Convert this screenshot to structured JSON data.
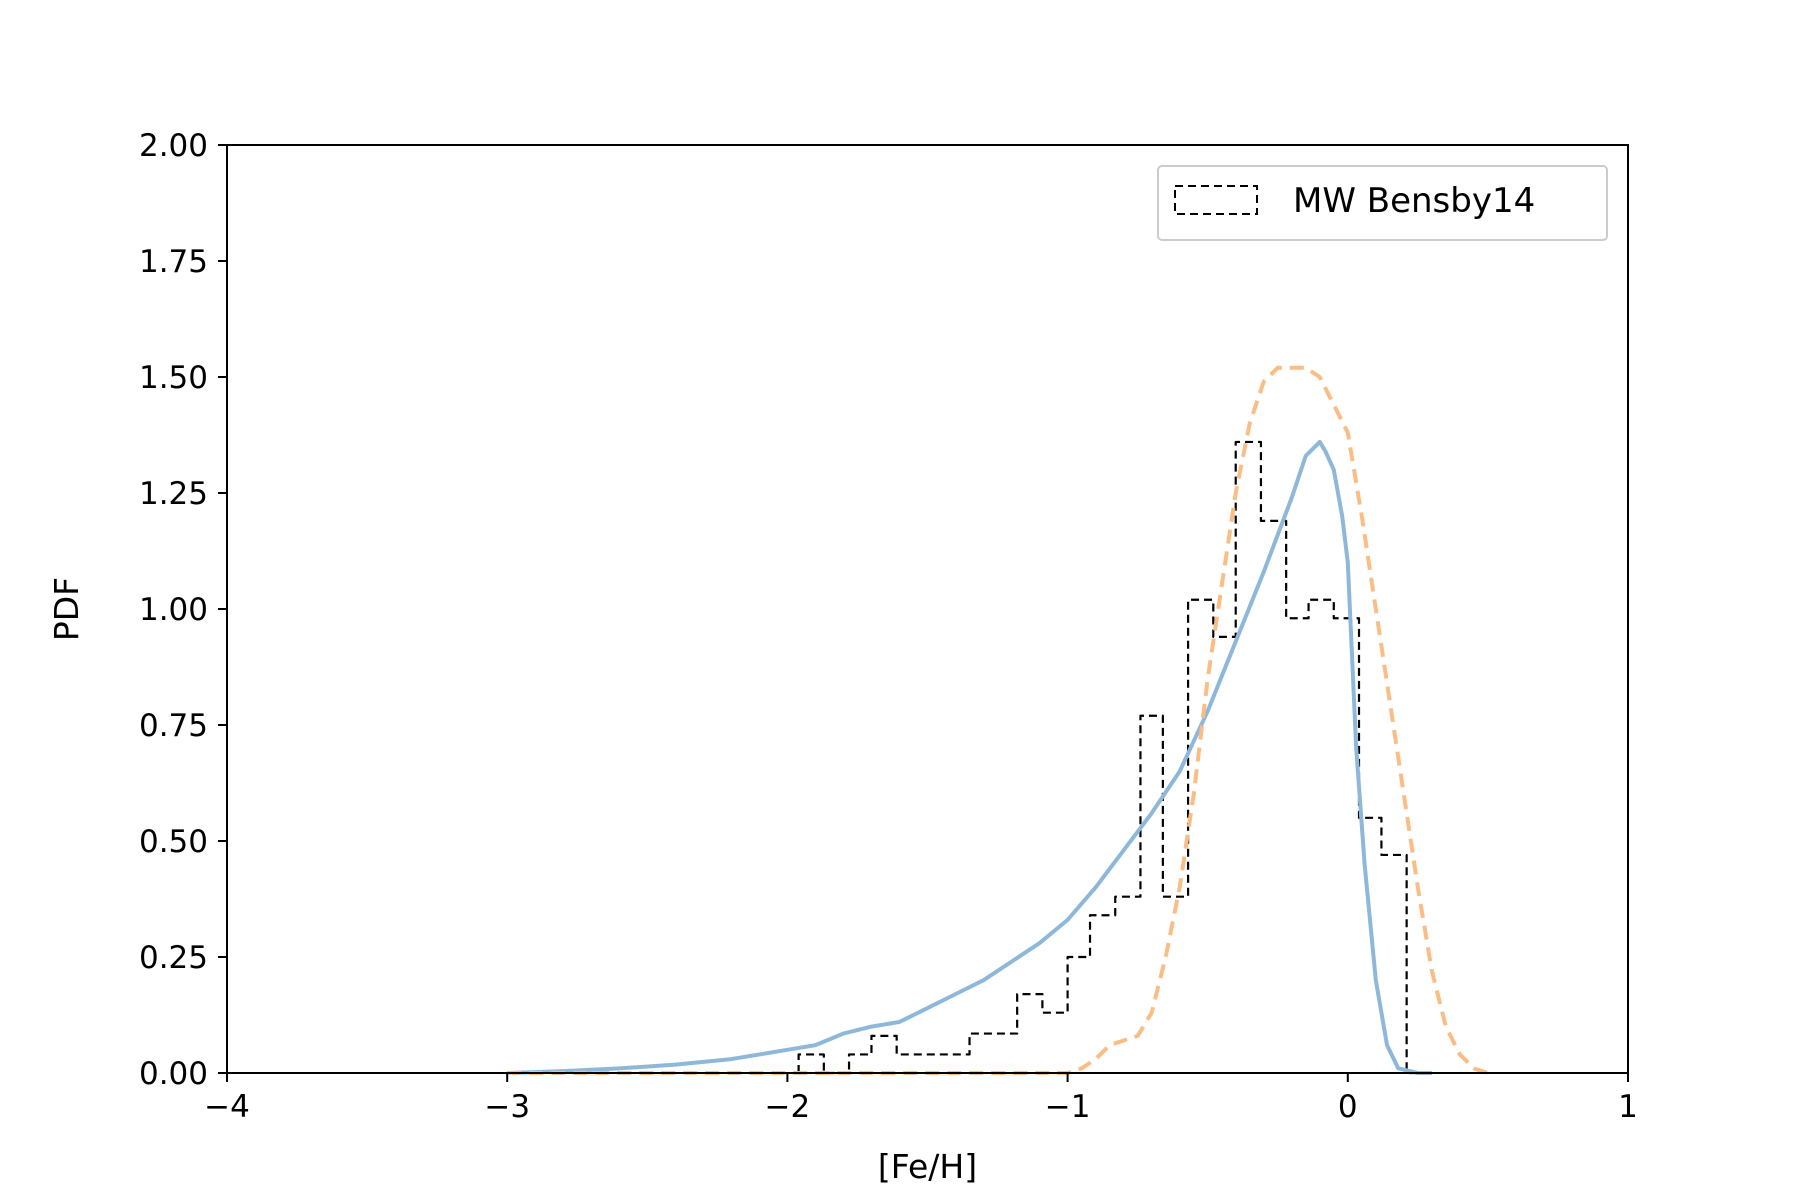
{
  "chart_data": {
    "type": "line",
    "xlabel": "[Fe/H]",
    "ylabel": "PDF",
    "xlim": [
      -4,
      1
    ],
    "ylim": [
      0,
      2
    ],
    "xticks": [
      -4,
      -3,
      -2,
      -1,
      0,
      1
    ],
    "xtick_labels": [
      "−4",
      "−3",
      "−2",
      "−1",
      "0",
      "1"
    ],
    "yticks": [
      0,
      0.25,
      0.5,
      0.75,
      1.0,
      1.25,
      1.5,
      1.75,
      2.0
    ],
    "ytick_labels": [
      "0.00",
      "0.25",
      "0.50",
      "0.75",
      "1.00",
      "1.25",
      "1.50",
      "1.75",
      "2.00"
    ],
    "grid": false,
    "legend": {
      "position": "upper right",
      "entries": [
        "MW Bensby14"
      ]
    },
    "series": [
      {
        "style": "step",
        "color": "#000000",
        "linestyle": "dashed",
        "name": "MW Bensby14",
        "edges": [
          -1.96,
          -1.87,
          -1.78,
          -1.7,
          -1.61,
          -1.52,
          -1.44,
          -1.35,
          -1.26,
          -1.18,
          -1.09,
          -1.0,
          -0.92,
          -0.83,
          -0.74,
          -0.66,
          -0.57,
          -0.48,
          -0.4,
          -0.31,
          -0.22,
          -0.14,
          -0.05,
          0.04,
          0.12,
          0.21,
          0.29
        ],
        "values": [
          0.04,
          0.0,
          0.04,
          0.08,
          0.04,
          0.04,
          0.04,
          0.085,
          0.085,
          0.17,
          0.13,
          0.25,
          0.34,
          0.38,
          0.77,
          0.38,
          1.02,
          0.94,
          1.36,
          1.19,
          0.98,
          1.02,
          0.98,
          0.55,
          0.47,
          0.0
        ]
      },
      {
        "style": "line",
        "color": "#8db8da",
        "linestyle": "solid",
        "x": [
          -3.0,
          -2.8,
          -2.6,
          -2.4,
          -2.2,
          -2.0,
          -1.9,
          -1.8,
          -1.7,
          -1.6,
          -1.5,
          -1.4,
          -1.3,
          -1.2,
          -1.1,
          -1.0,
          -0.9,
          -0.8,
          -0.7,
          -0.6,
          -0.5,
          -0.4,
          -0.3,
          -0.2,
          -0.15,
          -0.1,
          -0.08,
          -0.05,
          -0.02,
          0.0,
          0.03,
          0.06,
          0.1,
          0.14,
          0.18,
          0.25,
          0.3
        ],
        "y": [
          0.0,
          0.004,
          0.01,
          0.018,
          0.03,
          0.05,
          0.06,
          0.085,
          0.1,
          0.11,
          0.14,
          0.17,
          0.2,
          0.24,
          0.28,
          0.33,
          0.4,
          0.48,
          0.56,
          0.65,
          0.78,
          0.93,
          1.08,
          1.24,
          1.33,
          1.36,
          1.34,
          1.3,
          1.2,
          1.1,
          0.7,
          0.45,
          0.2,
          0.06,
          0.01,
          0.0,
          0.0
        ]
      },
      {
        "style": "line",
        "color": "#fbbd86",
        "linestyle": "dashed",
        "x": [
          -3.0,
          -2.0,
          -1.5,
          -1.2,
          -1.0,
          -0.95,
          -0.9,
          -0.85,
          -0.8,
          -0.75,
          -0.7,
          -0.65,
          -0.6,
          -0.55,
          -0.5,
          -0.45,
          -0.4,
          -0.35,
          -0.3,
          -0.25,
          -0.2,
          -0.15,
          -0.1,
          -0.05,
          0.0,
          0.05,
          0.1,
          0.15,
          0.2,
          0.25,
          0.3,
          0.35,
          0.4,
          0.45,
          0.5
        ],
        "y": [
          0.0,
          0.0,
          0.0,
          0.0,
          0.0,
          0.01,
          0.03,
          0.06,
          0.07,
          0.08,
          0.13,
          0.25,
          0.4,
          0.6,
          0.85,
          1.05,
          1.25,
          1.4,
          1.49,
          1.52,
          1.52,
          1.52,
          1.5,
          1.44,
          1.38,
          1.2,
          1.0,
          0.8,
          0.6,
          0.4,
          0.22,
          0.1,
          0.04,
          0.01,
          0.0
        ]
      }
    ]
  }
}
